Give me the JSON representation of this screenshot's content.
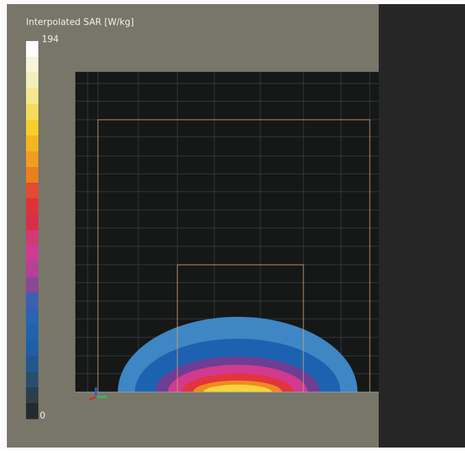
{
  "colorbar": {
    "title": "Interpolated SAR [W/kg]",
    "max_label": "194",
    "min_label": "0"
  }
}
